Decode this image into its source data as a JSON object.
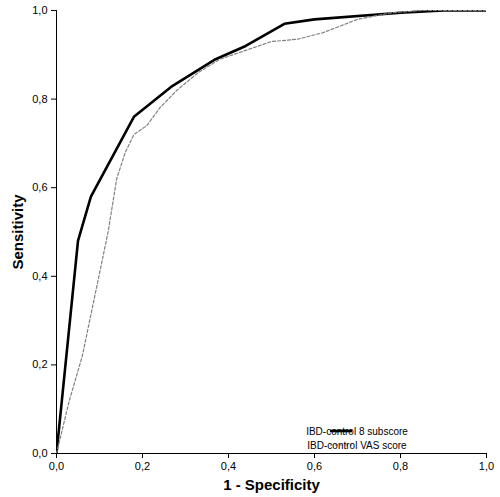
{
  "chart_data": {
    "type": "line",
    "x_label": "1 - Specificity",
    "y_label": "Sensitivity",
    "xlim": [
      0,
      1
    ],
    "ylim": [
      0,
      1
    ],
    "xticks": [
      {
        "value": 0,
        "label": "0,0"
      },
      {
        "value": 0.2,
        "label": "0,2"
      },
      {
        "value": 0.4,
        "label": "0,4"
      },
      {
        "value": 0.6,
        "label": "0,6"
      },
      {
        "value": 0.8,
        "label": "0,8"
      },
      {
        "value": 1,
        "label": "1,0"
      }
    ],
    "yticks": [
      {
        "value": 0,
        "label": "0,0"
      },
      {
        "value": 0.2,
        "label": "0,2"
      },
      {
        "value": 0.4,
        "label": "0,4"
      },
      {
        "value": 0.6,
        "label": "0,6"
      },
      {
        "value": 0.8,
        "label": "0,8"
      },
      {
        "value": 1,
        "label": "1,0"
      }
    ],
    "grid": false,
    "legend": "lower right",
    "series": [
      {
        "name": "IBD-control 8 subscore",
        "color": "#000000",
        "line_style": "solid",
        "x": [
          0,
          0.05,
          0.08,
          0.18,
          0.27,
          0.37,
          0.44,
          0.53,
          0.6,
          0.8,
          0.9,
          1
        ],
        "values": [
          0,
          0.48,
          0.58,
          0.76,
          0.83,
          0.89,
          0.92,
          0.97,
          0.98,
          0.995,
          1,
          1
        ]
      },
      {
        "name": "IBD-control VAS score",
        "color": "#808080",
        "line_style": "dashed",
        "x": [
          0,
          0.03,
          0.06,
          0.09,
          0.12,
          0.14,
          0.16,
          0.18,
          0.21,
          0.24,
          0.28,
          0.33,
          0.38,
          0.44,
          0.5,
          0.56,
          0.62,
          0.7,
          0.78,
          0.85,
          1
        ],
        "values": [
          0,
          0.12,
          0.22,
          0.36,
          0.5,
          0.62,
          0.68,
          0.72,
          0.74,
          0.78,
          0.82,
          0.86,
          0.89,
          0.91,
          0.93,
          0.935,
          0.95,
          0.98,
          0.995,
          1,
          1
        ]
      }
    ]
  }
}
